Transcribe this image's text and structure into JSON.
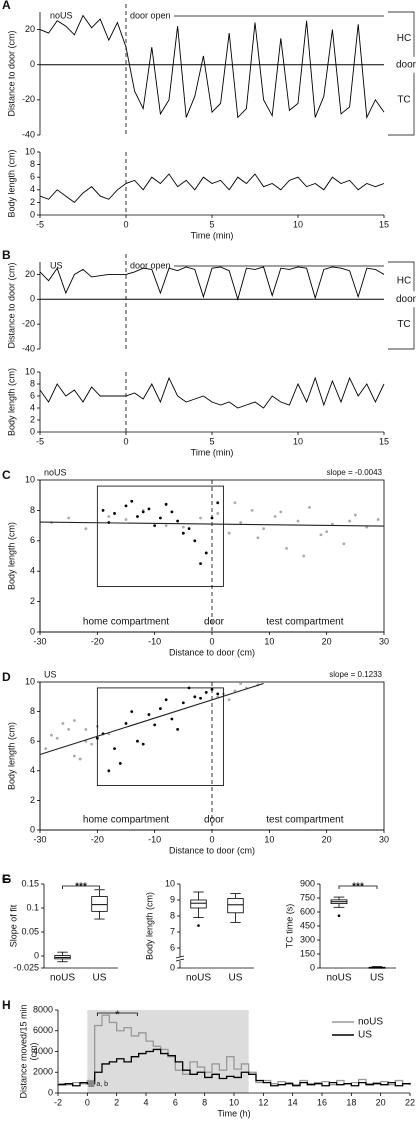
{
  "chart_data": [
    {
      "type": "line",
      "panel": "A",
      "label": "noUS",
      "annotation": "door open",
      "side_labels": [
        "HC",
        "door",
        "TC"
      ],
      "ylabel": "Distance to door (cm)",
      "x": [
        -5,
        -4.5,
        -4,
        -3.5,
        -3,
        -2.5,
        -2,
        -1.5,
        -1,
        -0.5,
        0,
        0.5,
        1,
        1.5,
        2,
        2.5,
        3,
        3.5,
        4,
        4.5,
        5,
        5.5,
        6,
        6.5,
        7,
        7.5,
        8,
        8.5,
        9,
        9.5,
        10,
        10.5,
        11,
        11.5,
        12,
        12.5,
        13,
        13.5,
        14,
        14.5,
        15
      ],
      "series": [
        {
          "color": "#000000",
          "values": [
            20,
            18,
            25,
            22,
            17,
            28,
            21,
            26,
            14,
            24,
            10,
            -15,
            -25,
            10,
            -28,
            -20,
            22,
            -30,
            -18,
            5,
            -27,
            -22,
            18,
            -30,
            -25,
            24,
            -20,
            -29,
            15,
            -26,
            -22,
            25,
            -30,
            -18,
            20,
            -28,
            -24,
            23,
            -30,
            -20,
            -27
          ]
        }
      ],
      "xlim": [
        -5,
        15
      ],
      "ylim": [
        -40,
        30
      ],
      "yticks": [
        -40,
        -20,
        0,
        20
      ],
      "hline": 0,
      "vline": 0
    },
    {
      "type": "line",
      "ylabel": "Body length (cm)",
      "xlabel": "Time (min)",
      "x": [
        -5,
        -4.5,
        -4,
        -3.5,
        -3,
        -2.5,
        -2,
        -1.5,
        -1,
        -0.5,
        0,
        0.5,
        1,
        1.5,
        2,
        2.5,
        3,
        3.5,
        4,
        4.5,
        5,
        5.5,
        6,
        6.5,
        7,
        7.5,
        8,
        8.5,
        9,
        9.5,
        10,
        10.5,
        11,
        11.5,
        12,
        12.5,
        13,
        13.5,
        14,
        14.5,
        15
      ],
      "series": [
        {
          "color": "#000000",
          "values": [
            3,
            2.5,
            4,
            3,
            2,
            3.5,
            4.5,
            3,
            2.5,
            4,
            5,
            5.5,
            4,
            6,
            5,
            6.5,
            4.5,
            5.5,
            4,
            6,
            5,
            5.5,
            4,
            6,
            5,
            6.5,
            4.5,
            5,
            4,
            5.5,
            6,
            4.5,
            5,
            4,
            6,
            5,
            5.5,
            4,
            5,
            4.5,
            5
          ]
        }
      ],
      "xlim": [
        -5,
        15
      ],
      "xticks": [
        -5,
        0,
        5,
        10,
        15
      ],
      "ylim": [
        0,
        10
      ],
      "yticks": [
        0,
        2,
        4,
        6,
        8,
        10
      ],
      "vline": 0
    },
    {
      "type": "line",
      "panel": "B",
      "label": "US",
      "annotation": "door open",
      "side_labels": [
        "HC",
        "door",
        "TC"
      ],
      "ylabel": "Distance to door (cm)",
      "x": [
        -5,
        -4.5,
        -4,
        -3.5,
        -3,
        -2.5,
        -2,
        -1.5,
        -1,
        -0.5,
        0,
        0.5,
        1,
        1.5,
        2,
        2.5,
        3,
        3.5,
        4,
        4.5,
        5,
        5.5,
        6,
        6.5,
        7,
        7.5,
        8,
        8.5,
        9,
        9.5,
        10,
        10.5,
        11,
        11.5,
        12,
        12.5,
        13,
        13.5,
        14,
        14.5,
        15
      ],
      "series": [
        {
          "color": "#000000",
          "values": [
            22,
            15,
            25,
            5,
            20,
            24,
            18,
            19,
            20,
            20,
            20,
            22,
            25,
            24,
            5,
            25,
            23,
            26,
            24,
            2,
            25,
            26,
            23,
            0,
            25,
            24,
            26,
            3,
            25,
            24,
            26,
            25,
            1,
            24,
            26,
            25,
            23,
            2,
            25,
            24,
            20
          ]
        }
      ],
      "xlim": [
        -5,
        15
      ],
      "ylim": [
        -40,
        30
      ],
      "yticks": [
        -40,
        -20,
        0,
        20
      ],
      "hline": 0,
      "vline": 0
    },
    {
      "type": "line",
      "ylabel": "Body length (cm)",
      "xlabel": "Time (min)",
      "x": [
        -5,
        -4.5,
        -4,
        -3.5,
        -3,
        -2.5,
        -2,
        -1.5,
        -1,
        -0.5,
        0,
        0.5,
        1,
        1.5,
        2,
        2.5,
        3,
        3.5,
        4,
        4.5,
        5,
        5.5,
        6,
        6.5,
        7,
        7.5,
        8,
        8.5,
        9,
        9.5,
        10,
        10.5,
        11,
        11.5,
        12,
        12.5,
        13,
        13.5,
        14,
        14.5,
        15
      ],
      "series": [
        {
          "color": "#000000",
          "values": [
            7,
            5,
            8,
            6,
            7,
            5,
            7.5,
            6,
            6,
            6,
            6,
            6.5,
            5.5,
            8,
            5,
            9,
            6,
            5,
            5.5,
            6,
            5,
            4.5,
            5,
            4,
            4.5,
            5,
            4,
            6,
            5,
            4.5,
            8,
            5,
            9,
            4.5,
            8.5,
            5,
            9,
            6,
            8,
            5,
            8
          ]
        }
      ],
      "xlim": [
        -5,
        15
      ],
      "xticks": [
        -5,
        0,
        5,
        10,
        15
      ],
      "ylim": [
        0,
        10
      ],
      "yticks": [
        0,
        2,
        4,
        6,
        8,
        10
      ],
      "vline": 0
    },
    {
      "type": "scatter",
      "panel": "C",
      "label": "noUS",
      "slope_label": "slope = -0.0043",
      "annotations": [
        "home compartment",
        "door",
        "test compartment"
      ],
      "xlabel": "Distance to door (cm)",
      "ylabel": "Body length (cm)",
      "series": [
        {
          "color": "#aaaaaa",
          "x": [
            -28,
            -25,
            -22,
            -18,
            -15,
            -12,
            -8,
            -5,
            -2,
            1,
            3,
            5,
            7,
            9,
            11,
            13,
            15,
            17,
            19,
            21,
            23,
            25,
            27,
            29,
            4,
            8,
            12,
            16,
            20,
            24
          ],
          "y": [
            7.2,
            7.5,
            6.8,
            7.6,
            7.4,
            8,
            7,
            6.9,
            7.5,
            7.8,
            6.5,
            7.2,
            8,
            6.8,
            7.6,
            5.5,
            7.3,
            8.2,
            6.4,
            7.1,
            5.8,
            7.7,
            6.9,
            7.4,
            8.5,
            6.2,
            7.9,
            5,
            6.6,
            7.3
          ]
        },
        {
          "color": "#000000",
          "x": [
            -19,
            -17,
            -15,
            -13,
            -11,
            -9,
            -7,
            -5,
            -3,
            -1,
            0,
            1,
            -18,
            -14,
            -10,
            -6,
            -2,
            -4,
            -8,
            -12
          ],
          "y": [
            8,
            7.8,
            8.3,
            7.6,
            8.1,
            7.5,
            7.9,
            6.5,
            6,
            5.2,
            7.5,
            8.5,
            7.2,
            8.6,
            7,
            7.3,
            4.5,
            6.8,
            8.4,
            7.9
          ]
        }
      ],
      "fit": {
        "x": [
          -30,
          30
        ],
        "y": [
          7.23,
          6.97
        ]
      },
      "compartment": {
        "x": [
          -20,
          2
        ],
        "y": [
          3,
          9.6
        ]
      },
      "vline": 0,
      "xlim": [
        -30,
        30
      ],
      "xticks": [
        -30,
        -20,
        -10,
        0,
        10,
        20,
        30
      ],
      "ylim": [
        0,
        10
      ],
      "yticks": [
        0,
        2,
        4,
        6,
        8,
        10
      ]
    },
    {
      "type": "scatter",
      "panel": "D",
      "label": "US",
      "slope_label": "slope = 0.1233",
      "annotations": [
        "home compartment",
        "door",
        "test compartment"
      ],
      "xlabel": "Distance to door (cm)",
      "ylabel": "Body length (cm)",
      "series": [
        {
          "color": "#aaaaaa",
          "x": [
            -29,
            -27,
            -25,
            -24,
            -22,
            -20,
            -18,
            -26,
            -23,
            -21,
            2,
            4,
            6,
            8,
            3,
            5,
            1,
            -28,
            -24,
            -22
          ],
          "y": [
            5.5,
            6.2,
            6.8,
            5,
            6,
            7,
            6.5,
            7.2,
            4.8,
            5.8,
            9.2,
            9.4,
            9.6,
            9.8,
            8.8,
            9.9,
            9,
            6.4,
            7.4,
            6.8
          ]
        },
        {
          "color": "#000000",
          "x": [
            -19,
            -17,
            -15,
            -13,
            -11,
            -9,
            -7,
            -5,
            -3,
            -1,
            0,
            1,
            -16,
            -12,
            -8,
            -4,
            -2,
            -6,
            -10,
            -14,
            -18,
            -20
          ],
          "y": [
            6.5,
            5.5,
            7.2,
            6,
            7.8,
            8.2,
            7.5,
            8.6,
            9,
            9.3,
            9.5,
            9.2,
            4.5,
            5.8,
            8.8,
            9.6,
            8.9,
            6.8,
            7.1,
            8,
            4,
            6.2
          ]
        }
      ],
      "fit": {
        "x": [
          -30,
          9
        ],
        "y": [
          5.1,
          9.9
        ]
      },
      "compartment": {
        "x": [
          -20,
          2
        ],
        "y": [
          3,
          9.6
        ]
      },
      "vline": 0,
      "xlim": [
        -30,
        30
      ],
      "xticks": [
        -30,
        -20,
        -10,
        0,
        10,
        20,
        30
      ],
      "ylim": [
        0,
        10
      ],
      "yticks": [
        0,
        2,
        4,
        6,
        8,
        10
      ]
    },
    {
      "type": "box",
      "panel": "E",
      "ylabel": "Slope of fit",
      "categories": [
        "noUS",
        "US"
      ],
      "significance": "***",
      "boxes": [
        {
          "min": -0.012,
          "q1": -0.006,
          "median": -0.003,
          "q3": 0.001,
          "max": 0.008
        },
        {
          "min": 0.077,
          "q1": 0.093,
          "median": 0.107,
          "q3": 0.124,
          "max": 0.138
        }
      ],
      "ylim": [
        -0.025,
        0.15
      ],
      "yticks": [
        -0.025,
        0,
        0.05,
        0.1,
        0.15
      ]
    },
    {
      "type": "box",
      "panel": "F",
      "ylabel": "Body length (cm)",
      "categories": [
        "noUS",
        "US"
      ],
      "boxes": [
        {
          "min": 7.9,
          "q1": 8.5,
          "median": 8.8,
          "q3": 9.0,
          "max": 9.5,
          "outliers": [
            7.4
          ]
        },
        {
          "min": 7.6,
          "q1": 8.2,
          "median": 8.7,
          "q3": 9.1,
          "max": 9.4
        }
      ],
      "ylim": [
        0,
        10
      ],
      "ybreak": [
        0.5,
        5.5
      ],
      "yticks": [
        0,
        6,
        7,
        8,
        9,
        10
      ]
    },
    {
      "type": "box",
      "panel": "G",
      "ylabel": "TC time (s)",
      "categories": [
        "noUS",
        "US"
      ],
      "significance": "***",
      "boxes": [
        {
          "min": 650,
          "q1": 690,
          "median": 710,
          "q3": 730,
          "max": 760,
          "outliers": [
            560
          ]
        },
        {
          "min": 0,
          "q1": 2,
          "median": 5,
          "q3": 8,
          "max": 15
        }
      ],
      "ylim": [
        0,
        900
      ],
      "yticks": [
        0,
        150,
        300,
        450,
        600,
        750,
        900
      ]
    },
    {
      "type": "line",
      "step": true,
      "panel": "H",
      "ylabel": [
        "Distance moved/15 min",
        "(cm)"
      ],
      "xlabel": "Time (h)",
      "significance": "*",
      "note": "a, b",
      "legend": "upper right",
      "shade": [
        0,
        11
      ],
      "x": [
        -2,
        -1.5,
        -1,
        -0.5,
        0,
        0.5,
        1,
        1.5,
        2,
        2.5,
        3,
        3.5,
        4,
        4.5,
        5,
        5.5,
        6,
        6.5,
        7,
        7.5,
        8,
        8.5,
        9,
        9.5,
        10,
        10.5,
        11,
        11.5,
        12,
        12.5,
        13,
        13.5,
        14,
        14.5,
        15,
        15.5,
        16,
        16.5,
        17,
        17.5,
        18,
        18.5,
        19,
        19.5,
        20,
        20.5,
        21,
        21.5,
        22
      ],
      "series": [
        {
          "name": "noUS",
          "color": "#999999",
          "values": [
            900,
            800,
            1000,
            900,
            1200,
            6500,
            7500,
            6800,
            6000,
            6300,
            5500,
            5800,
            5000,
            4500,
            4200,
            3500,
            2200,
            1800,
            3000,
            2500,
            2000,
            2800,
            2200,
            3500,
            2300,
            2800,
            2000,
            1000,
            1200,
            900,
            1100,
            1000,
            800,
            1200,
            900,
            1000,
            1100,
            800,
            1200,
            900,
            1000,
            1300,
            900,
            1000,
            1100,
            800,
            1200,
            900,
            1000
          ]
        },
        {
          "name": "US",
          "color": "#000000",
          "values": [
            800,
            900,
            700,
            1000,
            900,
            2000,
            2800,
            3000,
            3300,
            3000,
            3500,
            3800,
            4000,
            4200,
            3800,
            3600,
            3000,
            2200,
            1800,
            2000,
            1500,
            1800,
            1400,
            1600,
            1500,
            2000,
            1800,
            1200,
            1000,
            700,
            800,
            900,
            700,
            1000,
            800,
            900,
            700,
            1000,
            800,
            900,
            700,
            1000,
            800,
            900,
            800,
            1000,
            700,
            900,
            800
          ]
        }
      ],
      "xlim": [
        -2,
        22
      ],
      "xticks": [
        -2,
        0,
        2,
        4,
        6,
        8,
        10,
        12,
        14,
        16,
        18,
        20,
        22
      ],
      "ylim": [
        0,
        8000
      ],
      "yticks": [
        0,
        2000,
        4000,
        6000,
        8000
      ]
    }
  ]
}
